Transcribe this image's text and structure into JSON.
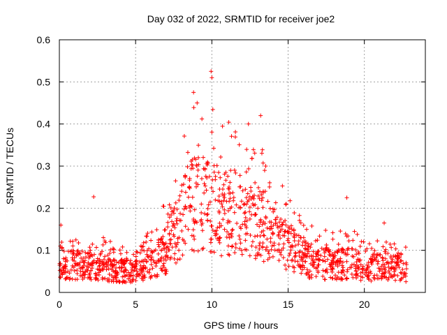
{
  "chart_data": {
    "type": "scatter",
    "title": "Day 032 of 2022, SRMTID for receiver joe2",
    "xlabel": "GPS time / hours",
    "ylabel": "SRMTID / TECUs",
    "xlim": [
      0,
      24
    ],
    "ylim": [
      0,
      0.6
    ],
    "xticks": [
      0,
      5,
      10,
      15,
      20
    ],
    "yticks": [
      0,
      0.1,
      0.2,
      0.3,
      0.4,
      0.5,
      0.6
    ],
    "xtick_labels": [
      "0",
      "5",
      "10",
      "15",
      "20"
    ],
    "ytick_labels": [
      "0",
      "0.1",
      "0.2",
      "0.3",
      "0.4",
      "0.5",
      "0.6"
    ],
    "grid": true,
    "marker": "+",
    "color": "#ff0000",
    "series": [
      {
        "name": "SRMTID",
        "envelope_hours": [
          0,
          1,
          2,
          3,
          4,
          5,
          6,
          7,
          8,
          9,
          10,
          11,
          12,
          13,
          14,
          15,
          16,
          17,
          18,
          19,
          20,
          21,
          22,
          22.8
        ],
        "envelope_median": [
          0.07,
          0.065,
          0.065,
          0.06,
          0.05,
          0.05,
          0.07,
          0.1,
          0.17,
          0.22,
          0.2,
          0.19,
          0.16,
          0.17,
          0.13,
          0.11,
          0.08,
          0.07,
          0.065,
          0.07,
          0.06,
          0.06,
          0.06,
          0.05
        ],
        "peaks": [
          {
            "x": 9.95,
            "y": 0.525
          },
          {
            "x": 10.0,
            "y": 0.51
          },
          {
            "x": 8.8,
            "y": 0.475
          },
          {
            "x": 13.2,
            "y": 0.42
          },
          {
            "x": 12.4,
            "y": 0.4
          },
          {
            "x": 2.25,
            "y": 0.227
          },
          {
            "x": 18.85,
            "y": 0.225
          },
          {
            "x": 0.1,
            "y": 0.16
          },
          {
            "x": 21.3,
            "y": 0.165
          }
        ],
        "n_points": 1400
      }
    ]
  }
}
